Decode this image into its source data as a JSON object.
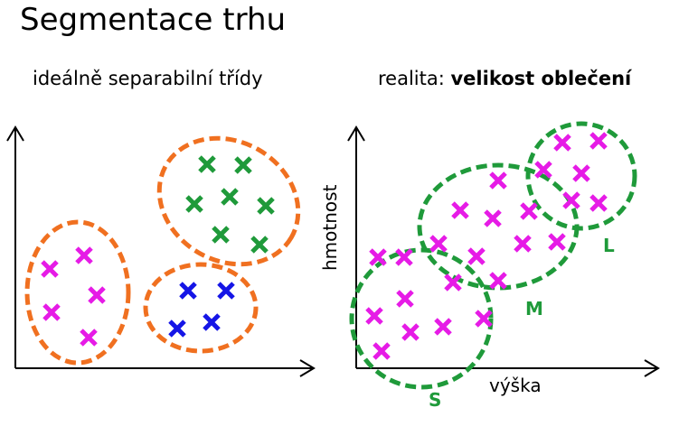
{
  "title": "Segmentace trhu",
  "left_panel": {
    "subtitle": "ideálně separabilní třídy"
  },
  "right_panel": {
    "subtitle_prefix": "realita: ",
    "subtitle_bold": "velikost oblečení",
    "y_axis_label": "hmotnost",
    "x_axis_label": "výška",
    "cluster_labels": [
      "S",
      "M",
      "L"
    ]
  },
  "colors": {
    "orange": "#f07020",
    "green": "#1f9a3a",
    "blue": "#1515e6",
    "magenta": "#e61be6",
    "axis": "#000000"
  }
}
